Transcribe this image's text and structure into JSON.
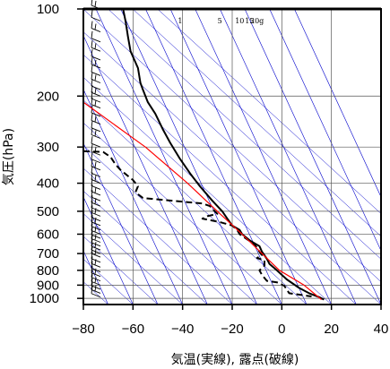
{
  "chart_data": {
    "type": "line",
    "subtype": "skew-T log-p emagram",
    "xlabel": "気温(実線), 露点(破線)",
    "ylabel": "気圧(hPa)",
    "xlim": [
      -80,
      40
    ],
    "ylim": [
      1050,
      100
    ],
    "y_scale": "log",
    "x_ticks": [
      -80,
      -60,
      -40,
      -20,
      0,
      20,
      40
    ],
    "y_ticks": [
      100,
      200,
      300,
      400,
      500,
      600,
      700,
      800,
      900,
      1000
    ],
    "grid": true,
    "mixing_ratio_labels": [
      "1",
      "5",
      "10",
      "15",
      "20g"
    ],
    "mixing_ratio_label_x": [
      -41,
      -25,
      -17,
      -13,
      -10
    ],
    "series": [
      {
        "name": "気温",
        "style": "solid",
        "color": "#000000",
        "points": [
          [
            -64,
            100
          ],
          [
            -63,
            110
          ],
          [
            -62,
            125
          ],
          [
            -61,
            140
          ],
          [
            -58,
            160
          ],
          [
            -57,
            180
          ],
          [
            -56,
            190
          ],
          [
            -54,
            210
          ],
          [
            -51,
            230
          ],
          [
            -48,
            260
          ],
          [
            -45,
            290
          ],
          [
            -41,
            330
          ],
          [
            -37,
            370
          ],
          [
            -33,
            410
          ],
          [
            -28,
            460
          ],
          [
            -24,
            500
          ],
          [
            -22,
            530
          ],
          [
            -20,
            560
          ],
          [
            -17,
            580
          ],
          [
            -16,
            600
          ],
          [
            -13,
            630
          ],
          [
            -9,
            660
          ],
          [
            -8,
            690
          ],
          [
            -6,
            730
          ],
          [
            -5,
            760
          ],
          [
            -2,
            800
          ],
          [
            2,
            860
          ],
          [
            7,
            920
          ],
          [
            11,
            960
          ],
          [
            15,
            990
          ],
          [
            17,
            1010
          ]
        ]
      },
      {
        "name": "露点",
        "style": "dashed",
        "color": "#000000",
        "points": [
          [
            -80,
            310
          ],
          [
            -72,
            312
          ],
          [
            -69,
            325
          ],
          [
            -67,
            345
          ],
          [
            -65,
            360
          ],
          [
            -60,
            390
          ],
          [
            -58,
            410
          ],
          [
            -59,
            430
          ],
          [
            -56,
            450
          ],
          [
            -50,
            455
          ],
          [
            -44,
            460
          ],
          [
            -38,
            465
          ],
          [
            -32,
            470
          ],
          [
            -29,
            480
          ],
          [
            -27,
            500
          ],
          [
            -26,
            510
          ],
          [
            -30,
            520
          ],
          [
            -32,
            530
          ],
          [
            -25,
            545
          ],
          [
            -20,
            560
          ],
          [
            -18,
            580
          ],
          [
            -17,
            600
          ],
          [
            -14,
            625
          ],
          [
            -11,
            650
          ],
          [
            -9,
            690
          ],
          [
            -8,
            710
          ],
          [
            -10,
            725
          ],
          [
            -7,
            740
          ],
          [
            -7,
            770
          ],
          [
            -9,
            800
          ],
          [
            -8,
            830
          ],
          [
            -6,
            870
          ],
          [
            -2,
            880
          ],
          [
            1,
            905
          ],
          [
            3,
            960
          ],
          [
            12,
            985
          ]
        ]
      },
      {
        "name": "",
        "style": "solid",
        "color": "#ff0000",
        "points": [
          [
            16,
            1010
          ],
          [
            9,
            900
          ],
          [
            -1,
            800
          ],
          [
            -8,
            700
          ],
          [
            -16,
            600
          ],
          [
            -26,
            500
          ],
          [
            -38,
            400
          ],
          [
            -55,
            300
          ],
          [
            -80,
            210
          ]
        ]
      }
    ],
    "wind_barbs": [
      100,
      110,
      120,
      130,
      140,
      150,
      160,
      170,
      180,
      190,
      200,
      210,
      220,
      235,
      250,
      265,
      280,
      300,
      320,
      340,
      360,
      380,
      400,
      420,
      440,
      460,
      480,
      500,
      520,
      540,
      560,
      580,
      600,
      620,
      640,
      660,
      680,
      700,
      720,
      750,
      780,
      810,
      840,
      870,
      900,
      930,
      960,
      990
    ]
  },
  "colors": {
    "isotherm_grid": "#0000cc",
    "frame": "#000000",
    "moist_adiabat": "#ff0000"
  }
}
